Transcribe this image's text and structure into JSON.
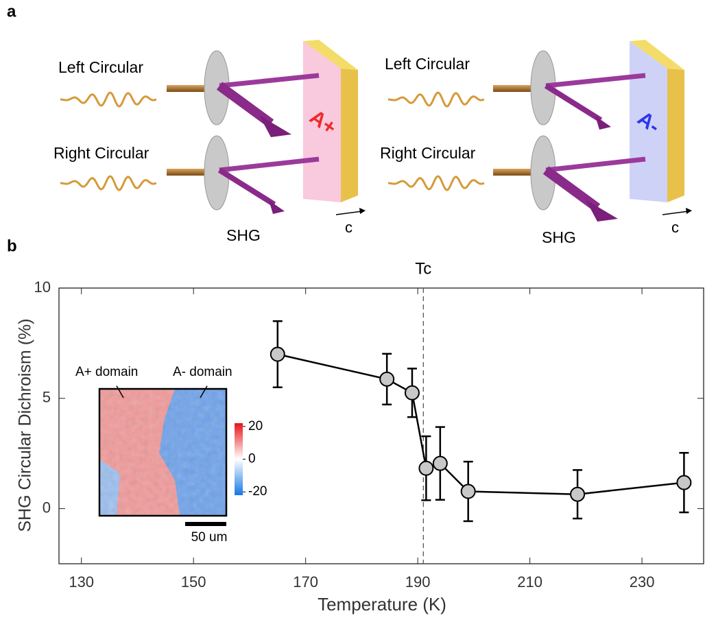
{
  "panel_a": {
    "label": "a",
    "left": {
      "top_beam": "Left Circular",
      "bottom_beam": "Right Circular",
      "output": "SHG",
      "plate": "A+",
      "axis": "c"
    },
    "right": {
      "top_beam": "Left Circular",
      "bottom_beam": "Right Circular",
      "output": "SHG",
      "plate": "A-",
      "axis": "c"
    }
  },
  "panel_b_label": "b",
  "chart_data": {
    "type": "errorbar-line",
    "x_label": "Temperature (K)",
    "y_label": "SHG Circular Dichroism (%)",
    "x": [
      165,
      184.5,
      189,
      191.5,
      194,
      199,
      218.5,
      237.5
    ],
    "values": [
      7.0,
      5.87,
      5.25,
      1.83,
      2.05,
      0.78,
      0.65,
      1.18
    ],
    "errors": [
      1.5,
      1.15,
      1.1,
      1.45,
      1.65,
      1.35,
      1.1,
      1.35
    ],
    "color": "#000000",
    "marker_color": "#c8c8c8",
    "xlim": [
      126,
      241
    ],
    "xticks": [
      130,
      150,
      170,
      190,
      210,
      230
    ],
    "ylim": [
      -2.5,
      10
    ],
    "yticks": [
      0,
      5,
      10
    ],
    "tc_line": 191,
    "tc_label": "Tc",
    "inset": {
      "left_label": "A+ domain",
      "right_label": "A- domain",
      "scale_bar": "50 um",
      "clim": [
        -22,
        22
      ],
      "colorbar_ticks": [
        20,
        0,
        -20
      ]
    }
  }
}
